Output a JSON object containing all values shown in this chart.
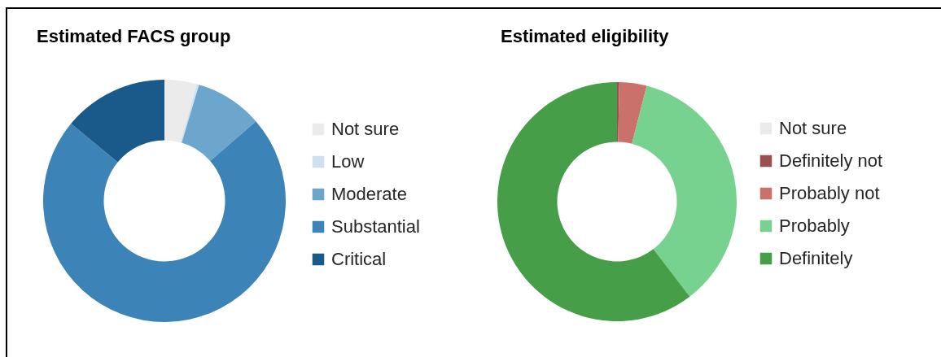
{
  "chart_data": [
    {
      "type": "donut",
      "title": "Estimated FACS group",
      "categories": [
        "Not sure",
        "Low",
        "Moderate",
        "Substantial",
        "Critical"
      ],
      "values": [
        4.3,
        0.3,
        9.0,
        72.4,
        14.0
      ],
      "colors": [
        "#ebebeb",
        "#cfe0ee",
        "#6ca6cd",
        "#3c83b7",
        "#1a5a8a"
      ],
      "legend": "right"
    },
    {
      "type": "donut",
      "title": "Estimated eligibility",
      "categories": [
        "Not sure",
        "Definitely not",
        "Probably not",
        "Probably",
        "Definitely"
      ],
      "values": [
        0,
        0.3,
        3.7,
        35.6,
        60.4
      ],
      "colors": [
        "#ebebeb",
        "#9b4f4f",
        "#c9716a",
        "#77d18f",
        "#469e48"
      ],
      "legend": "right"
    }
  ]
}
